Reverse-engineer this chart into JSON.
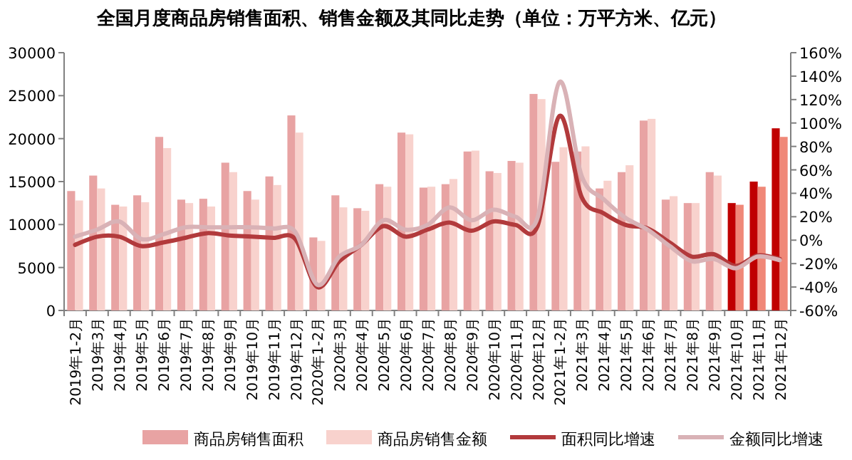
{
  "chart_data": {
    "type": "bar",
    "title": "全国月度商品房销售面积、销售金额及其同比走势（单位：万平方米、亿元）",
    "categories": [
      "2019年1-2月",
      "2019年3月",
      "2019年4月",
      "2019年5月",
      "2019年6月",
      "2019年7月",
      "2019年8月",
      "2019年9月",
      "2019年10月",
      "2019年11月",
      "2019年12月",
      "2020年1-2月",
      "2020年3月",
      "2020年4月",
      "2020年5月",
      "2020年6月",
      "2020年7月",
      "2020年8月",
      "2020年9月",
      "2020年10月",
      "2020年11月",
      "2020年12月",
      "2021年1-2月",
      "2021年3月",
      "2021年4月",
      "2021年5月",
      "2021年6月",
      "2021年7月",
      "2021年8月",
      "2021年9月",
      "2021年10月",
      "2021年11月",
      "2021年12月"
    ],
    "series": [
      {
        "name": "商品房销售面积",
        "color": "#e8a3a3",
        "colors": [
          "#e8a3a3",
          "#e8a3a3",
          "#e8a3a3",
          "#e8a3a3",
          "#e8a3a3",
          "#e8a3a3",
          "#e8a3a3",
          "#e8a3a3",
          "#e8a3a3",
          "#e8a3a3",
          "#e8a3a3",
          "#e8a3a3",
          "#e8a3a3",
          "#e8a3a3",
          "#e8a3a3",
          "#e8a3a3",
          "#e8a3a3",
          "#e8a3a3",
          "#e8a3a3",
          "#e8a3a3",
          "#e8a3a3",
          "#e8a3a3",
          "#e8a3a3",
          "#e8a3a3",
          "#e8a3a3",
          "#e8a3a3",
          "#e8a3a3",
          "#e8a3a3",
          "#e8a3a3",
          "#e8a3a3",
          "#c00000",
          "#c00000",
          "#c00000"
        ],
        "values": [
          13900,
          15700,
          12300,
          13400,
          20200,
          12900,
          13000,
          17200,
          13900,
          15600,
          22700,
          8500,
          13400,
          11900,
          14700,
          20700,
          14300,
          14700,
          18500,
          16200,
          17400,
          25200,
          17300,
          18500,
          14200,
          16100,
          22100,
          12900,
          12500,
          16100,
          12500,
          15000,
          21200
        ]
      },
      {
        "name": "商品房销售金额",
        "color": "#f8d2cd",
        "colors": [
          "#f8d2cd",
          "#f8d2cd",
          "#f8d2cd",
          "#f8d2cd",
          "#f8d2cd",
          "#f8d2cd",
          "#f8d2cd",
          "#f8d2cd",
          "#f8d2cd",
          "#f8d2cd",
          "#f8d2cd",
          "#f8d2cd",
          "#f8d2cd",
          "#f8d2cd",
          "#f8d2cd",
          "#f8d2cd",
          "#f8d2cd",
          "#f8d2cd",
          "#f8d2cd",
          "#f8d2cd",
          "#f8d2cd",
          "#f8d2cd",
          "#f8d2cd",
          "#f8d2cd",
          "#f8d2cd",
          "#f8d2cd",
          "#f8d2cd",
          "#f8d2cd",
          "#f8d2cd",
          "#f8d2cd",
          "#f08878",
          "#f08878",
          "#f08878"
        ],
        "values": [
          12800,
          14200,
          12100,
          12600,
          18900,
          12500,
          12100,
          16100,
          12900,
          14600,
          20700,
          8100,
          12000,
          11600,
          14400,
          20500,
          14400,
          15300,
          18600,
          16000,
          17200,
          24600,
          19000,
          19100,
          15100,
          16900,
          22300,
          13300,
          12500,
          15700,
          12300,
          14400,
          20200
        ]
      },
      {
        "name": "面积同比增速",
        "type": "line",
        "axis": "y2",
        "color": "#b23a3c",
        "values": [
          -4,
          3,
          3,
          -5,
          -2,
          2,
          6,
          4,
          3,
          2,
          1,
          -40,
          -18,
          -4,
          12,
          3,
          9,
          15,
          8,
          16,
          13,
          12,
          106,
          37,
          23,
          13,
          10,
          -2,
          -14,
          -12,
          -22,
          -13,
          -16
        ]
      },
      {
        "name": "金额同比增速",
        "type": "line",
        "axis": "y2",
        "color": "#d9b2b6",
        "values": [
          3,
          9,
          16,
          1,
          5,
          11,
          11,
          11,
          11,
          10,
          7,
          -38,
          -14,
          -4,
          17,
          9,
          13,
          28,
          17,
          26,
          20,
          19,
          135,
          55,
          35,
          19,
          9,
          -5,
          -18,
          -16,
          -24,
          -14,
          -17
        ]
      }
    ],
    "ylim": [
      0,
      30000
    ],
    "yticks": [
      0,
      5000,
      10000,
      15000,
      20000,
      25000,
      30000
    ],
    "y2lim": [
      -60,
      160
    ],
    "y2ticks": [
      {
        "value": -60,
        "label": "-60%"
      },
      {
        "value": -40,
        "label": "-40%"
      },
      {
        "value": -20,
        "label": "-20%"
      },
      {
        "value": 0,
        "label": "0%"
      },
      {
        "value": 20,
        "label": "20%"
      },
      {
        "value": 40,
        "label": "40%"
      },
      {
        "value": 60,
        "label": "60%"
      },
      {
        "value": 80,
        "label": "80%"
      },
      {
        "value": 100,
        "label": "100%"
      },
      {
        "value": 120,
        "label": "120%"
      },
      {
        "value": 140,
        "label": "140%"
      },
      {
        "value": 160,
        "label": "160%"
      }
    ],
    "legend": "bottom",
    "grid": false,
    "marker": "none",
    "line_style": "solid"
  }
}
